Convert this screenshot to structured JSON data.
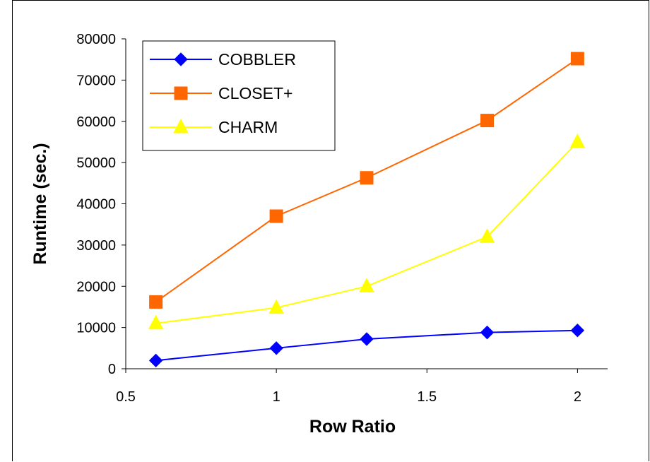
{
  "chart_data": {
    "type": "line",
    "xlabel": "Row Ratio",
    "ylabel": "Runtime (sec.)",
    "xlim": [
      0.5,
      2.1
    ],
    "ylim": [
      0,
      80000
    ],
    "x_ticks": [
      0.5,
      1,
      1.5,
      2
    ],
    "y_ticks": [
      0,
      10000,
      20000,
      30000,
      40000,
      50000,
      60000,
      70000,
      80000
    ],
    "grid": false,
    "legend_position": "top-left",
    "x": [
      0.6,
      1.0,
      1.3,
      1.7,
      2.0
    ],
    "series": [
      {
        "name": "COBBLER",
        "color": "#0000ff",
        "marker": "diamond",
        "values": [
          2000,
          5000,
          7200,
          8800,
          9300
        ]
      },
      {
        "name": "CLOSET+",
        "color": "#ff6600",
        "marker": "square",
        "values": [
          16200,
          37000,
          46300,
          60200,
          75200
        ]
      },
      {
        "name": "CHARM",
        "color": "#ffff00",
        "marker": "triangle",
        "values": [
          11000,
          14800,
          20000,
          32000,
          55000
        ]
      }
    ]
  }
}
